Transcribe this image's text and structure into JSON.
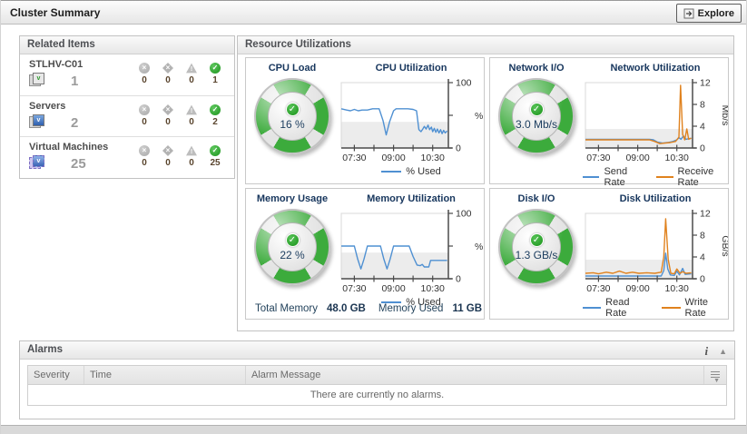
{
  "header": {
    "title": "Cluster Summary",
    "explore_label": "Explore"
  },
  "related_items": {
    "title": "Related Items",
    "items": [
      {
        "name": "STLHV-C01",
        "icon": "cluster-icon",
        "count": "1",
        "statuses": {
          "fatal": "0",
          "critical": "0",
          "warning": "0",
          "normal": "1"
        }
      },
      {
        "name": "Servers",
        "icon": "server-icon",
        "count": "2",
        "statuses": {
          "fatal": "0",
          "critical": "0",
          "warning": "0",
          "normal": "2"
        }
      },
      {
        "name": "Virtual Machines",
        "icon": "vm-icon",
        "count": "25",
        "statuses": {
          "fatal": "0",
          "critical": "0",
          "warning": "0",
          "normal": "25"
        }
      }
    ]
  },
  "resource_utilizations": {
    "title": "Resource Utilizations",
    "quadrants": [
      {
        "id": "cpu",
        "gauge_title": "CPU Load",
        "gauge_value": "16 %",
        "chart_title": "CPU Utilization"
      },
      {
        "id": "network",
        "gauge_title": "Network I/O",
        "gauge_value": "3.0 Mb/s",
        "chart_title": "Network Utilization"
      },
      {
        "id": "memory",
        "gauge_title": "Memory Usage",
        "gauge_value": "22 %",
        "chart_title": "Memory Utilization"
      },
      {
        "id": "disk",
        "gauge_title": "Disk I/O",
        "gauge_value": "1.3 GB/s",
        "chart_title": "Disk Utilization"
      }
    ],
    "memory_footer": {
      "total_label": "Total Memory",
      "total_value": "48.0 GB",
      "used_label": "Memory Used",
      "used_value": "11 GB"
    }
  },
  "alarms": {
    "title": "Alarms",
    "columns": [
      "Severity",
      "Time",
      "Alarm Message"
    ],
    "empty_message": "There are currently no alarms.",
    "info_icon": "i",
    "collapse_icon": "▲"
  },
  "colors": {
    "line_blue": "#4f90d2",
    "line_orange": "#e0821e",
    "gauge_green": "#3cab3c",
    "navy": "#17365d"
  },
  "chart_data": [
    {
      "type": "line",
      "title": "CPU Utilization",
      "xlabel": "",
      "ylabel": "%",
      "unit_rotated": false,
      "xrange": [
        7.0,
        11.1
      ],
      "ylim": [
        0,
        100
      ],
      "band": 40,
      "legend_position": "bottom",
      "xticks": [
        {
          "t": 7.5,
          "label": "07:30"
        },
        {
          "t": 8.25
        },
        {
          "t": 9.0,
          "label": "09:00"
        },
        {
          "t": 9.75
        },
        {
          "t": 10.5,
          "label": "10:30"
        }
      ],
      "yticks": [
        {
          "v": 0,
          "label": "0"
        },
        {
          "v": 50
        },
        {
          "v": 100,
          "label": "100"
        }
      ],
      "series": [
        {
          "name": "% Used",
          "color": "#4f90d2",
          "points": [
            [
              7,
              60
            ],
            [
              7.2,
              58
            ],
            [
              7.35,
              57
            ],
            [
              7.5,
              59
            ],
            [
              7.65,
              57
            ],
            [
              7.8,
              58
            ],
            [
              8,
              58
            ],
            [
              8.2,
              60
            ],
            [
              8.45,
              60
            ],
            [
              8.6,
              42
            ],
            [
              8.72,
              20
            ],
            [
              8.85,
              40
            ],
            [
              9,
              57
            ],
            [
              9.1,
              60
            ],
            [
              9.55,
              60
            ],
            [
              9.75,
              59
            ],
            [
              9.88,
              57
            ],
            [
              9.97,
              28
            ],
            [
              10.05,
              25
            ],
            [
              10.12,
              29
            ],
            [
              10.18,
              33
            ],
            [
              10.25,
              29
            ],
            [
              10.32,
              35
            ],
            [
              10.38,
              28
            ],
            [
              10.45,
              32
            ],
            [
              10.5,
              25
            ],
            [
              10.56,
              30
            ],
            [
              10.62,
              24
            ],
            [
              10.68,
              29
            ],
            [
              10.74,
              23
            ],
            [
              10.8,
              28
            ],
            [
              10.86,
              22
            ],
            [
              10.92,
              27
            ],
            [
              10.98,
              23
            ],
            [
              11.05,
              26
            ]
          ]
        }
      ]
    },
    {
      "type": "line",
      "title": "Network Utilization",
      "xlabel": "",
      "ylabel": "Mb/s",
      "unit_rotated": true,
      "xrange": [
        7.0,
        11.1
      ],
      "ylim": [
        0,
        12
      ],
      "band": 3.5,
      "legend_position": "bottom",
      "xticks": [
        {
          "t": 7.5,
          "label": "07:30"
        },
        {
          "t": 8.25
        },
        {
          "t": 9.0,
          "label": "09:00"
        },
        {
          "t": 9.75
        },
        {
          "t": 10.5,
          "label": "10:30"
        }
      ],
      "yticks": [
        {
          "v": 0,
          "label": "0"
        },
        {
          "v": 4,
          "label": "4"
        },
        {
          "v": 8,
          "label": "8"
        },
        {
          "v": 12,
          "label": "12"
        }
      ],
      "series": [
        {
          "name": "Send Rate",
          "color": "#4f90d2",
          "points": [
            [
              7,
              1.6
            ],
            [
              9.45,
              1.6
            ],
            [
              9.6,
              1.5
            ],
            [
              9.75,
              1.1
            ],
            [
              9.95,
              0.9
            ],
            [
              10.15,
              1.0
            ],
            [
              10.35,
              1.2
            ],
            [
              10.5,
              1.5
            ],
            [
              10.58,
              1.9
            ],
            [
              10.66,
              1.6
            ],
            [
              10.75,
              2.2
            ],
            [
              10.85,
              1.6
            ],
            [
              11.05,
              1.8
            ]
          ]
        },
        {
          "name": "Receive Rate",
          "color": "#e0821e",
          "points": [
            [
              7,
              1.5
            ],
            [
              9.45,
              1.5
            ],
            [
              9.65,
              1.2
            ],
            [
              9.85,
              0.8
            ],
            [
              10.05,
              0.9
            ],
            [
              10.25,
              1.0
            ],
            [
              10.45,
              1.2
            ],
            [
              10.58,
              2.0
            ],
            [
              10.64,
              11.5
            ],
            [
              10.72,
              2.5
            ],
            [
              10.8,
              1.5
            ],
            [
              10.88,
              3.5
            ],
            [
              10.95,
              1.6
            ],
            [
              11.05,
              1.8
            ]
          ]
        }
      ]
    },
    {
      "type": "line",
      "title": "Memory Utilization",
      "xlabel": "",
      "ylabel": "%",
      "unit_rotated": false,
      "xrange": [
        7.0,
        11.1
      ],
      "ylim": [
        0,
        100
      ],
      "band": 40,
      "legend_position": "bottom",
      "xticks": [
        {
          "t": 7.5,
          "label": "07:30"
        },
        {
          "t": 8.25
        },
        {
          "t": 9.0,
          "label": "09:00"
        },
        {
          "t": 9.75
        },
        {
          "t": 10.5,
          "label": "10:30"
        }
      ],
      "yticks": [
        {
          "v": 0,
          "label": "0"
        },
        {
          "v": 50
        },
        {
          "v": 100,
          "label": "100"
        }
      ],
      "series": [
        {
          "name": "% Used",
          "color": "#4f90d2",
          "points": [
            [
              7,
              50
            ],
            [
              7.5,
              50
            ],
            [
              7.63,
              30
            ],
            [
              7.75,
              15
            ],
            [
              7.87,
              30
            ],
            [
              8,
              50
            ],
            [
              8.5,
              50
            ],
            [
              8.63,
              30
            ],
            [
              8.75,
              15
            ],
            [
              8.87,
              30
            ],
            [
              9,
              50
            ],
            [
              9.6,
              50
            ],
            [
              9.75,
              34
            ],
            [
              9.9,
              21
            ],
            [
              10.02,
              20
            ],
            [
              10.1,
              22
            ],
            [
              10.18,
              18
            ],
            [
              10.35,
              18
            ],
            [
              10.42,
              28
            ],
            [
              11.05,
              28
            ]
          ]
        }
      ]
    },
    {
      "type": "line",
      "title": "Disk Utilization",
      "xlabel": "",
      "ylabel": "GB/s",
      "unit_rotated": true,
      "xrange": [
        7.0,
        11.1
      ],
      "ylim": [
        0,
        12
      ],
      "band": 3.5,
      "legend_position": "bottom",
      "xticks": [
        {
          "t": 7.5,
          "label": "07:30"
        },
        {
          "t": 8.25
        },
        {
          "t": 9.0,
          "label": "09:00"
        },
        {
          "t": 9.75
        },
        {
          "t": 10.5,
          "label": "10:30"
        }
      ],
      "yticks": [
        {
          "v": 0,
          "label": "0"
        },
        {
          "v": 4,
          "label": "4"
        },
        {
          "v": 8,
          "label": "8"
        },
        {
          "v": 12,
          "label": "12"
        }
      ],
      "series": [
        {
          "name": "Read Rate",
          "color": "#4f90d2",
          "points": [
            [
              7,
              0.5
            ],
            [
              8,
              0.5
            ],
            [
              9,
              0.5
            ],
            [
              9.9,
              0.5
            ],
            [
              10.0,
              1.5
            ],
            [
              10.07,
              4.7
            ],
            [
              10.15,
              1.8
            ],
            [
              10.25,
              0.7
            ],
            [
              10.4,
              0.6
            ],
            [
              10.5,
              1.4
            ],
            [
              10.6,
              0.7
            ],
            [
              10.72,
              1.9
            ],
            [
              10.82,
              0.8
            ],
            [
              11.05,
              0.9
            ]
          ]
        },
        {
          "name": "Write Rate",
          "color": "#e0821e",
          "points": [
            [
              7,
              1.0
            ],
            [
              7.3,
              1.1
            ],
            [
              7.5,
              0.9
            ],
            [
              7.8,
              1.2
            ],
            [
              8.05,
              1.0
            ],
            [
              8.3,
              1.4
            ],
            [
              8.55,
              1.0
            ],
            [
              8.8,
              1.2
            ],
            [
              9.05,
              1.0
            ],
            [
              9.35,
              1.1
            ],
            [
              9.65,
              1.0
            ],
            [
              9.9,
              1.2
            ],
            [
              10.0,
              4.0
            ],
            [
              10.07,
              11.0
            ],
            [
              10.17,
              3.5
            ],
            [
              10.27,
              1.0
            ],
            [
              10.4,
              0.9
            ],
            [
              10.5,
              1.8
            ],
            [
              10.62,
              1.0
            ],
            [
              10.72,
              1.3
            ],
            [
              10.85,
              1.0
            ],
            [
              11.05,
              1.1
            ]
          ]
        }
      ]
    }
  ]
}
